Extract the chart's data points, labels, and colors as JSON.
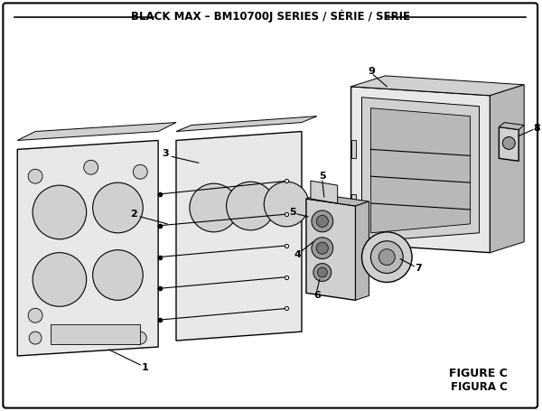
{
  "title": "BLACK MAX – BM10700J SERIES / SÉRIE / SERIE",
  "figure_label": "FIGURE C",
  "figura_label": "FIGURA C",
  "bg_color": "#ffffff",
  "line_color": "#000000",
  "fill_light": "#e8e8e8",
  "fill_mid": "#d0d0d0",
  "fill_dark": "#b8b8b8",
  "fill_darker": "#999999",
  "text_color": "#000000",
  "title_fontsize": 8.5,
  "label_fontsize": 8,
  "figure_label_fontsize": 9
}
